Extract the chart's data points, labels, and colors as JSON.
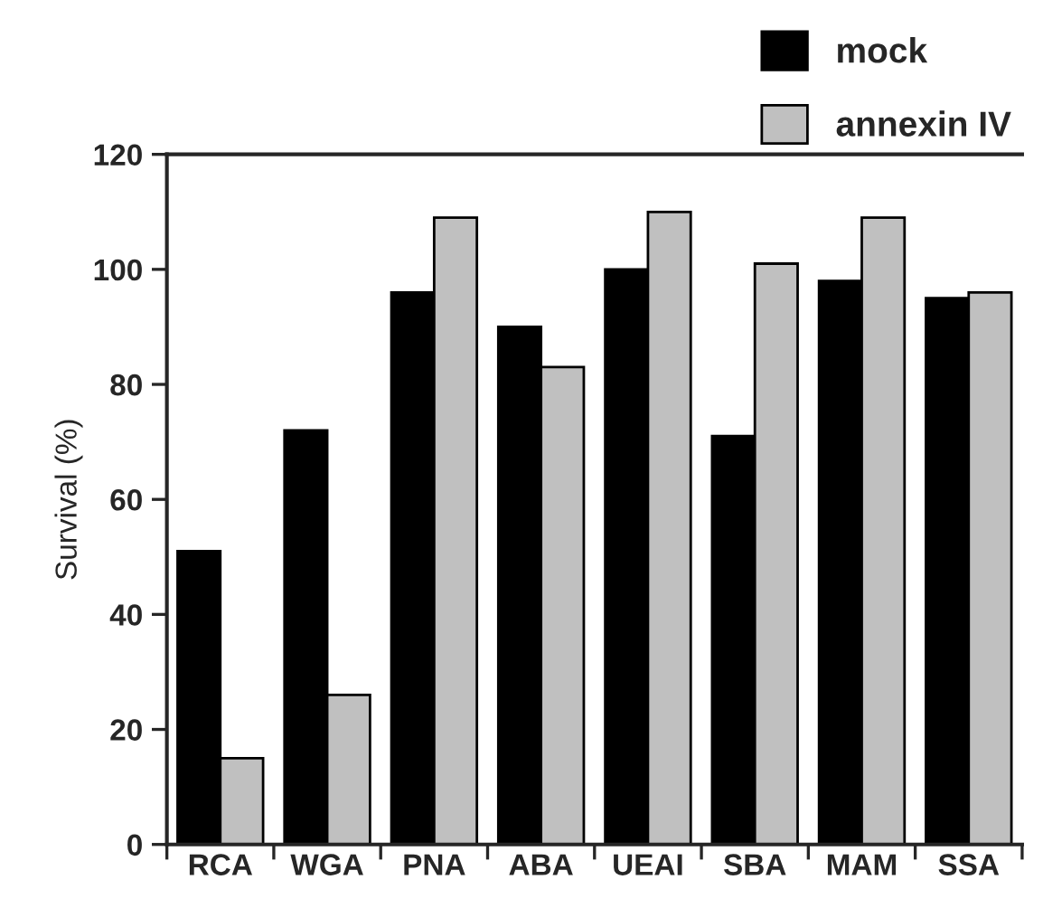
{
  "chart_data": {
    "type": "bar",
    "ylabel": "Survival (%)",
    "categories": [
      "RCA",
      "WGA",
      "PNA",
      "ABA",
      "UEAI",
      "SBA",
      "MAM",
      "SSA"
    ],
    "series": [
      {
        "name": "mock",
        "color": "#000000",
        "values": [
          51,
          72,
          96,
          90,
          100,
          71,
          98,
          95
        ]
      },
      {
        "name": "annexin IV",
        "color": "#c0c0c0",
        "values": [
          15,
          26,
          109,
          83,
          110,
          101,
          109,
          96
        ]
      }
    ],
    "ylim": [
      0,
      120
    ],
    "yticks": [
      0,
      20,
      40,
      60,
      80,
      100,
      120
    ],
    "legend": "top right",
    "grid": false
  }
}
